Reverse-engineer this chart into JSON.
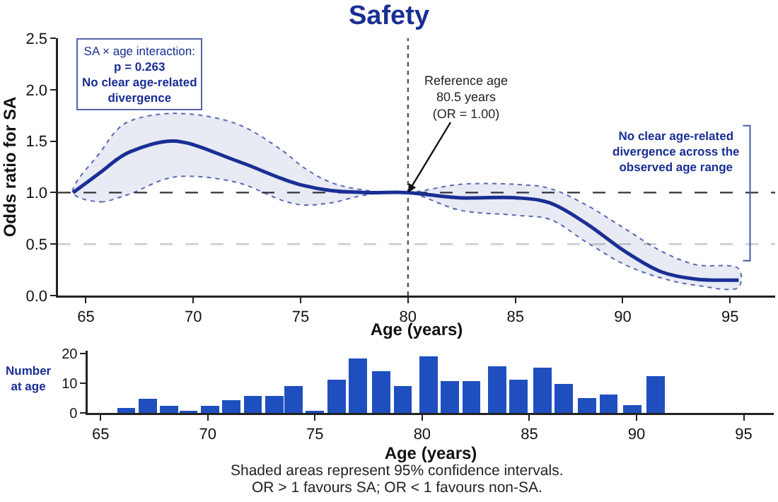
{
  "chart_data": [
    {
      "type": "line",
      "title": "Safety",
      "xlabel": "Age (years)",
      "ylabel": "Odds ratio for SA",
      "x": [
        64.4,
        65.7,
        66.5,
        67.1,
        69.1,
        72.0,
        74.2,
        75.1,
        76.4,
        78.1,
        80,
        82.4,
        85,
        86.6,
        88.3,
        90.1,
        91.8,
        93.4,
        95.4
      ],
      "series": [
        {
          "color": "#1a2f94",
          "values": [
            1.0,
            1.2,
            1.33,
            1.4,
            1.5,
            1.31,
            1.13,
            1.07,
            1.02,
            1.0,
            1.0,
            0.95,
            0.95,
            0.9,
            0.7,
            0.43,
            0.23,
            0.16,
            0.15
          ],
          "lower": [
            1.0,
            0.91,
            0.95,
            0.99,
            1.15,
            1.1,
            0.92,
            0.88,
            0.9,
            0.98,
            1.0,
            0.83,
            0.78,
            0.74,
            0.52,
            0.3,
            0.17,
            0.1,
            0.08
          ],
          "upper": [
            1.0,
            1.4,
            1.62,
            1.7,
            1.77,
            1.67,
            1.4,
            1.25,
            1.1,
            1.02,
            1.0,
            1.08,
            1.08,
            1.04,
            0.88,
            0.65,
            0.43,
            0.3,
            0.26
          ]
        }
      ],
      "xlim": [
        63.7,
        97.1
      ],
      "xticks": [
        65,
        70,
        75,
        80,
        85,
        90,
        95
      ],
      "ylim": [
        0,
        2.5
      ],
      "yticks": [
        {
          "value": 0,
          "label": "0.0"
        },
        0.5,
        {
          "value": 1,
          "label": "1.0"
        },
        1.5,
        {
          "value": 2,
          "label": "2.0"
        },
        2.5
      ],
      "grid": false,
      "marker": "none",
      "line_style": "solid",
      "ref_lines": [
        {
          "axis": "y",
          "value": 0.5,
          "color": "#cccccc",
          "line_style": "dashed"
        },
        {
          "axis": "y",
          "value": 1.0,
          "color": "#333333",
          "line_style": "dashed"
        },
        {
          "axis": "x",
          "value": 80,
          "color": "#555555",
          "line_style": "dotted"
        }
      ],
      "annotations": [
        "SA × age interaction:\np = 0.263\nNo clear age-related\ndivergence",
        "No clear age-related\ndivergence across the\nobserved age range",
        {
          "text": "Reference age\n80.5 years\n(OR = 1.00)",
          "x": 80,
          "y": 1.0
        }
      ]
    },
    {
      "type": "bar",
      "xlabel": "Age (years)",
      "ylabel": "Number\nat age",
      "x": [
        66.2,
        67.2,
        68.2,
        69.1,
        70.1,
        71.1,
        72.1,
        73.1,
        74.0,
        75.0,
        76.0,
        77.0,
        78.1,
        79.1,
        80.3,
        81.3,
        82.3,
        83.5,
        84.5,
        85.6,
        86.6,
        87.7,
        88.7,
        89.8,
        90.9
      ],
      "values": [
        1.7,
        4.8,
        2.5,
        0.7,
        2.5,
        4.2,
        5.7,
        5.7,
        9,
        0.7,
        11.2,
        18.3,
        14,
        9,
        19.2,
        10.8,
        10.8,
        15.7,
        11.3,
        15.2,
        9.8,
        5,
        6.3,
        2.7,
        12.5
      ],
      "color": "#1f4fbf",
      "xlim": [
        64.4,
        96.4
      ],
      "xticks": [
        65,
        70,
        75,
        80,
        85,
        90,
        95
      ],
      "ylim": [
        0,
        21
      ],
      "yticks": [
        0,
        10,
        20
      ],
      "grid": false,
      "annotations": [
        "Shaded areas represent 95% confidence intervals.",
        "OR > 1 favours SA; OR < 1 favours non-SA."
      ]
    }
  ]
}
